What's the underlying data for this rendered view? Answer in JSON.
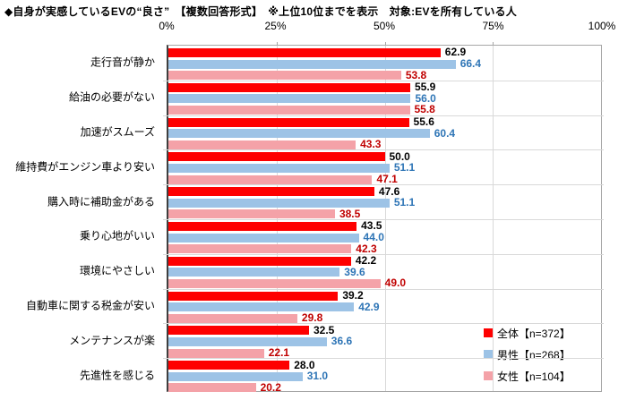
{
  "title": "◆自身が実感しているEVの“良さ”　【複数回答形式】　※上位10位までを表示　対象:EVを所有している人",
  "chart_data": {
    "type": "bar",
    "orientation": "horizontal",
    "title": "自身が実感しているEVの“良さ”",
    "note": "※上位10位までを表示　対象:EVを所有している人",
    "question_format": "【複数回答形式】",
    "categories": [
      "走行音が静か",
      "給油の必要がない",
      "加速がスムーズ",
      "維持費がエンジン車より安い",
      "購入時に補助金がある",
      "乗り心地がいい",
      "環境にやさしい",
      "自動車に関する税金が安い",
      "メンテナンスが楽",
      "先進性を感じる"
    ],
    "series": [
      {
        "name": "全体【n=372】",
        "color": "#fe0000",
        "label_color": "#000000",
        "values": [
          62.9,
          55.9,
          55.6,
          50.0,
          47.6,
          43.5,
          42.2,
          39.2,
          32.5,
          28.0
        ]
      },
      {
        "name": "男性【n=268】",
        "color": "#9dc3e6",
        "label_color": "#2e75b6",
        "values": [
          66.4,
          56.0,
          60.4,
          51.1,
          51.1,
          44.0,
          39.6,
          42.9,
          36.6,
          31.0
        ]
      },
      {
        "name": "女性【n=104】",
        "color": "#f4a2a8",
        "label_color": "#c00000",
        "values": [
          53.8,
          55.8,
          43.3,
          47.1,
          38.5,
          42.3,
          49.0,
          29.8,
          22.1,
          20.2
        ]
      }
    ],
    "x_axis": {
      "tick_labels": [
        "0%",
        "25%",
        "50%",
        "75%",
        "100%"
      ],
      "min": 0,
      "max": 100
    },
    "grid": true,
    "gridline_percents": [
      25,
      50,
      75
    ],
    "legend_position": "inside-bottom-right",
    "value_labels": "outside-end",
    "colors": {
      "gridline": "#d9d9d9",
      "plot_border": "#a6a6a6",
      "axis_line": "#3f3f3f"
    }
  }
}
